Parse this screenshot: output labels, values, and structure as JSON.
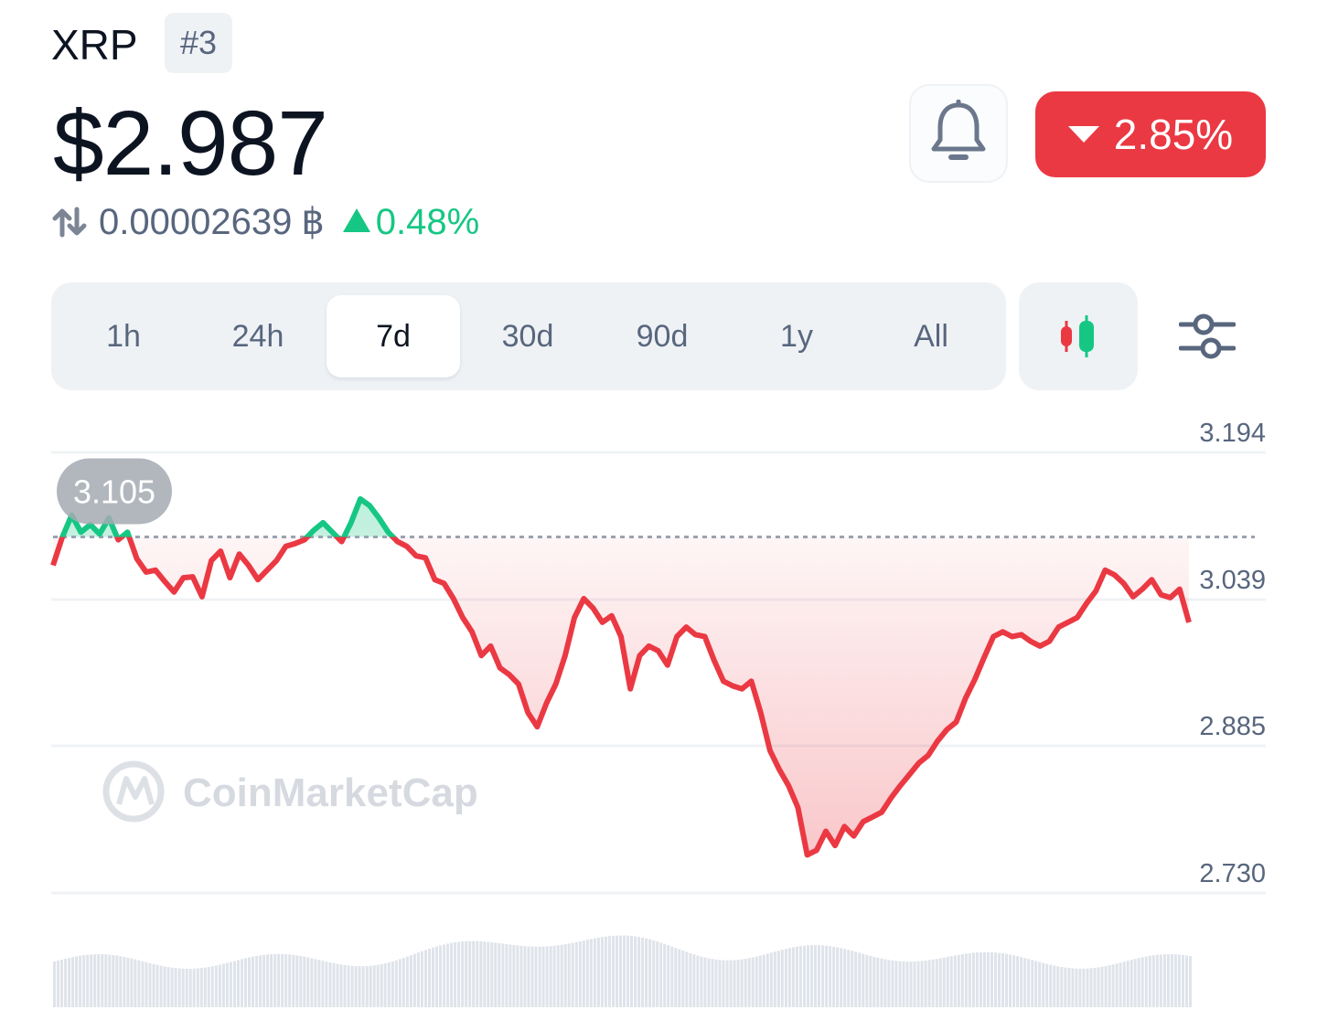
{
  "header": {
    "coin_name": "XRP",
    "rank": "#3",
    "price": "$2.987",
    "btc_price": "0.00002639",
    "btc_symbol": "฿",
    "btc_change": "0.48%",
    "change_24h": "2.85%",
    "change_direction": "down"
  },
  "icons": {
    "swap": "swap-arrows-icon",
    "bell": "bell-icon",
    "candle": "candlestick-icon",
    "settings": "sliders-icon"
  },
  "timeframes": {
    "items": [
      "1h",
      "24h",
      "7d",
      "30d",
      "90d",
      "1y",
      "All"
    ],
    "selected": "7d"
  },
  "colors": {
    "up": "#16c784",
    "down": "#ea3943",
    "text_primary": "#0d1421",
    "text_secondary": "#58667e",
    "tab_bg": "#eff2f5"
  },
  "watermark": "CoinMarketCap",
  "chart_data": {
    "type": "line",
    "y_ticks": [
      "3.194",
      "3.039",
      "2.885",
      "2.730"
    ],
    "ylim": [
      2.73,
      3.194
    ],
    "baseline": 3.105,
    "baseline_label": "3.105",
    "grid": true,
    "series": [
      {
        "values": [
          3.075,
          3.105,
          3.128,
          3.11,
          3.118,
          3.108,
          3.125,
          3.102,
          3.11,
          3.082,
          3.068,
          3.07,
          3.058,
          3.047,
          3.062,
          3.063,
          3.042,
          3.08,
          3.09,
          3.062,
          3.087,
          3.075,
          3.06,
          3.07,
          3.08,
          3.095,
          3.098,
          3.102,
          3.112,
          3.12,
          3.11,
          3.1,
          3.12,
          3.145,
          3.138,
          3.125,
          3.11,
          3.1,
          3.095,
          3.085,
          3.083,
          3.06,
          3.056,
          3.04,
          3.02,
          3.005,
          2.98,
          2.99,
          2.967,
          2.96,
          2.95,
          2.92,
          2.905,
          2.93,
          2.95,
          2.98,
          3.02,
          3.04,
          3.03,
          3.015,
          3.022,
          3.0,
          2.945,
          2.98,
          2.99,
          2.985,
          2.97,
          3.0,
          3.01,
          3.002,
          3.0,
          2.975,
          2.953,
          2.948,
          2.945,
          2.953,
          2.92,
          2.88,
          2.86,
          2.843,
          2.82,
          2.77,
          2.775,
          2.795,
          2.78,
          2.8,
          2.79,
          2.805,
          2.81,
          2.815,
          2.83,
          2.843,
          2.855,
          2.867,
          2.875,
          2.89,
          2.902,
          2.91,
          2.935,
          2.955,
          2.978,
          3.0,
          3.005,
          3.0,
          3.002,
          2.995,
          2.99,
          2.995,
          3.01,
          3.015,
          3.02,
          3.035,
          3.048,
          3.07,
          3.065,
          3.056,
          3.042,
          3.05,
          3.06,
          3.044,
          3.041,
          3.05,
          3.015
        ]
      }
    ],
    "volume_note": "volume bars shown below price line"
  }
}
